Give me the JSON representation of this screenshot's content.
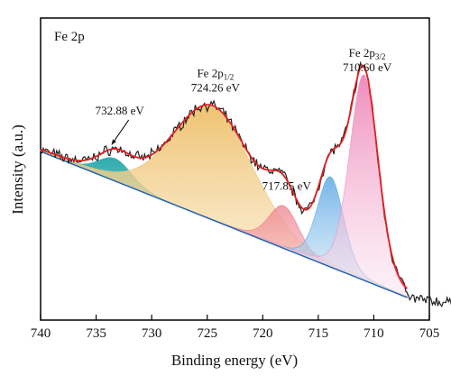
{
  "chart_data": {
    "type": "area",
    "panel_label": "Fe 2p",
    "xlabel": "Binding energy (eV)",
    "ylabel": "Intensity (a.u.)",
    "xlim": [
      740,
      705
    ],
    "ylim": [
      0,
      100
    ],
    "x_reversed": true,
    "x_ticks": [
      740,
      735,
      730,
      725,
      720,
      715,
      710,
      705
    ],
    "x_tick_labels": [
      "740",
      "735",
      "730",
      "725",
      "720",
      "715",
      "710",
      "705"
    ],
    "y_ticks_shown": false,
    "grid": false,
    "baseline": {
      "x": [
        740,
        707.0
      ],
      "y": [
        58.3,
        0.0
      ]
    },
    "fit_peaks": [
      {
        "center": 733.3,
        "height": 9,
        "fwhm": 3.6,
        "color": "#2aa9ae"
      },
      {
        "center": 724.5,
        "height": 45,
        "fwhm": 8.6,
        "color": "#f0c070"
      },
      {
        "center": 718.1,
        "height": 17,
        "fwhm": 3.2,
        "color": "#ea7880"
      },
      {
        "center": 713.9,
        "height": 36,
        "fwhm": 2.8,
        "color": "#5aa6e0"
      },
      {
        "center": 710.9,
        "height": 82,
        "fwhm": 3.0,
        "color": "#f08ebf"
      }
    ],
    "envelope_color": "#e02020",
    "raw_color": "#222222",
    "annotations": [
      {
        "lines": [
          [
            {
              "text": "Fe 2p"
            },
            {
              "text": "1/2",
              "sub": true
            }
          ],
          [
            {
              "text": "724.26 eV"
            }
          ]
        ],
        "x": 724.26,
        "y": 88
      },
      {
        "lines": [
          [
            {
              "text": "Fe 2p"
            },
            {
              "text": "3/2",
              "sub": true
            }
          ],
          [
            {
              "text": "710.60 eV"
            }
          ]
        ],
        "x": 710.6,
        "y": 96
      },
      {
        "lines": [
          [
            {
              "text": "732.88 eV"
            }
          ]
        ],
        "x": 732.88,
        "y": 73,
        "arrow_to": [
          733.6,
          61
        ]
      },
      {
        "lines": [
          [
            {
              "text": "717.85 eV"
            }
          ]
        ],
        "x": 717.85,
        "y": 43
      }
    ]
  }
}
